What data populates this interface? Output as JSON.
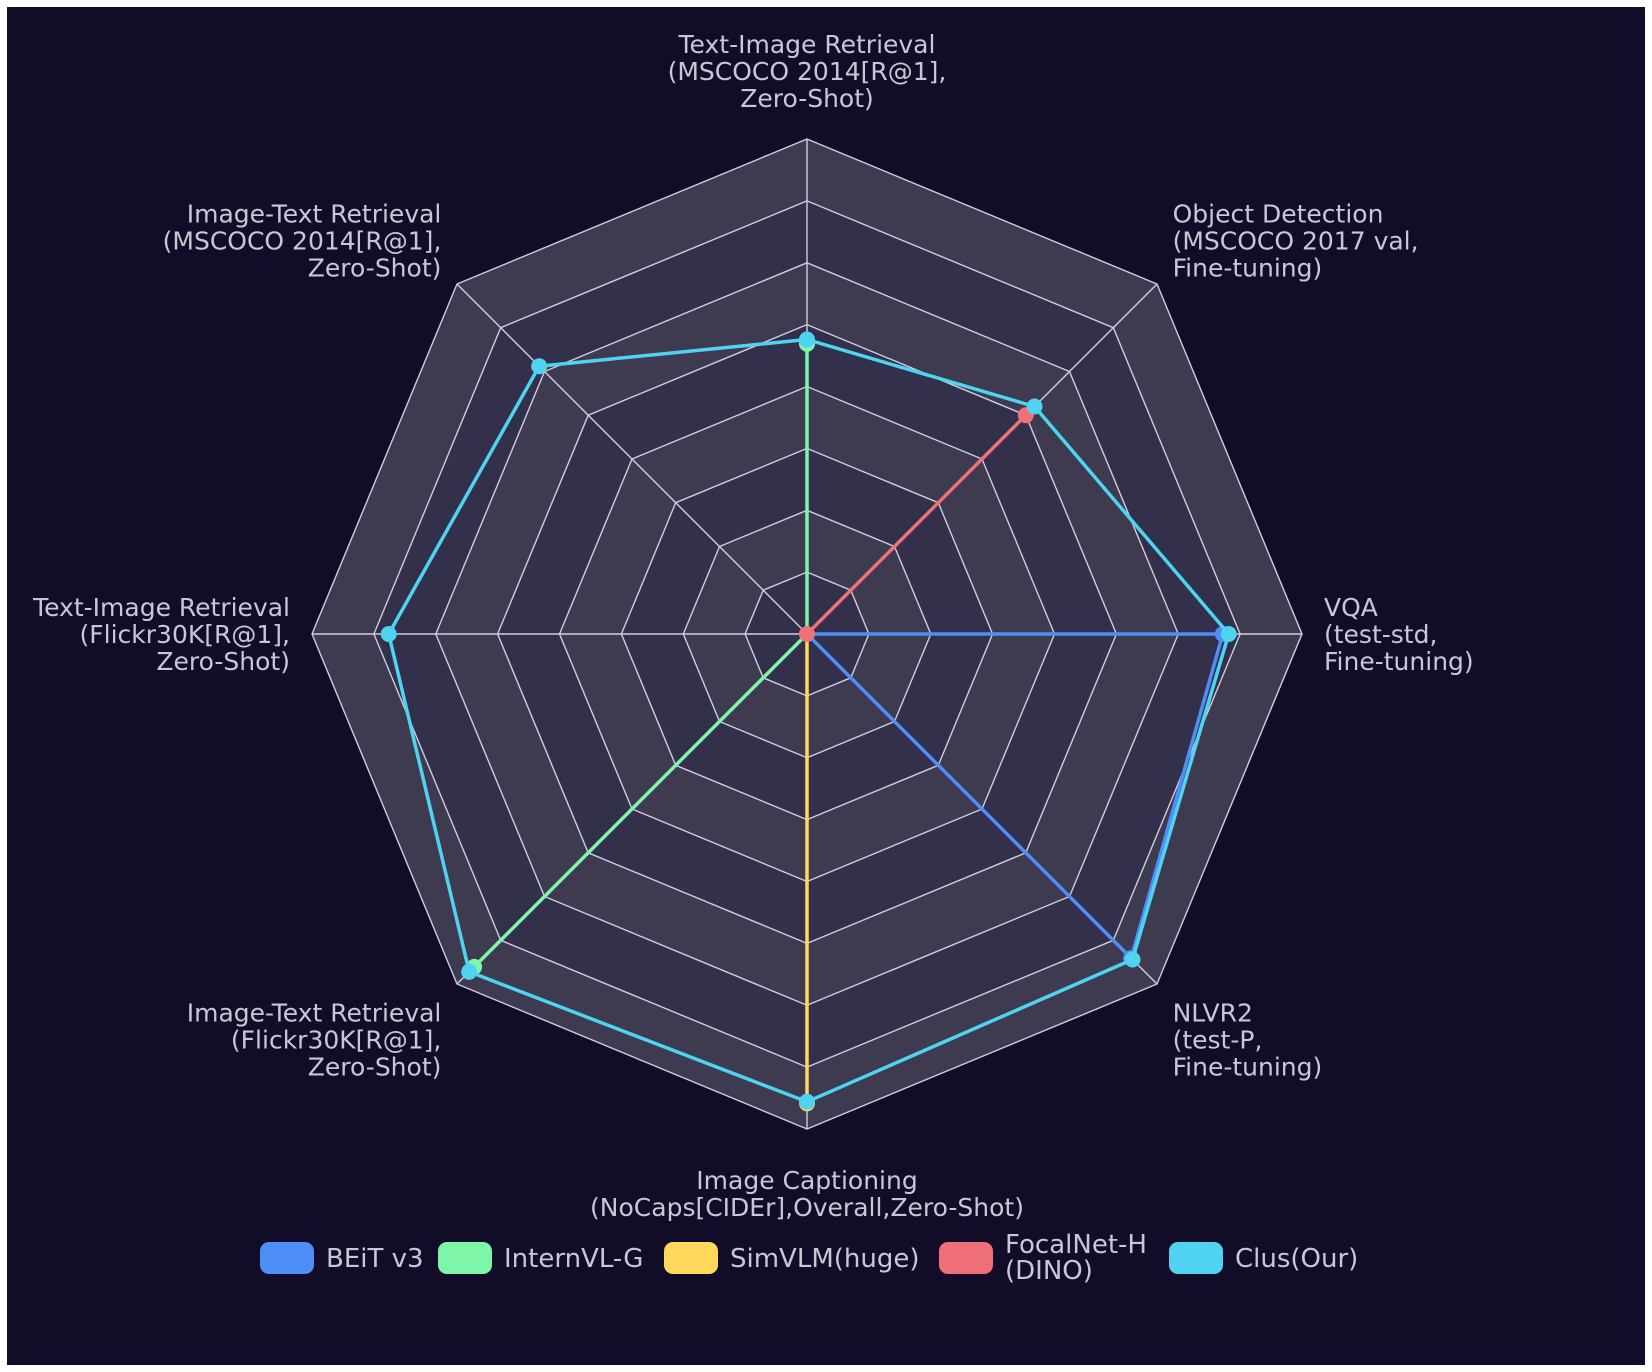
{
  "chart_data": {
    "type": "radar",
    "title": "",
    "max": 100,
    "rings": 8,
    "axes": [
      [
        "Text-Image Retrieval",
        "(MSCOCO 2014[R@1],",
        "Zero-Shot)"
      ],
      [
        "Object Detection",
        "(MSCOCO 2017 val,",
        "Fine-tuning)"
      ],
      [
        "VQA",
        "(test-std,",
        "Fine-tuning)"
      ],
      [
        "NLVR2",
        "(test-P,",
        "Fine-tuning)"
      ],
      [
        "Image Captioning",
        "(NoCaps[CIDEr],Overall,Zero-Shot)"
      ],
      [
        "Image-Text Retrieval",
        "(Flickr30K[R@1],",
        "Zero-Shot)"
      ],
      [
        "Text-Image Retrieval",
        "(Flickr30K[R@1],",
        "Zero-Shot)"
      ],
      [
        "Image-Text Retrieval",
        "(MSCOCO 2014[R@1],",
        "Zero-Shot)"
      ]
    ],
    "series": [
      {
        "name": "BEiT v3",
        "color": "#4f8ef7",
        "values": [
          0,
          0,
          84.0,
          92.6,
          0,
          0,
          0,
          0
        ]
      },
      {
        "name": "InternVL-G",
        "color": "#7ef5a8",
        "values": [
          58.6,
          0,
          0,
          0,
          0,
          95.1,
          0,
          0
        ]
      },
      {
        "name": "SimVLM(huge)",
        "color": "#ffd85c",
        "values": [
          0,
          0,
          0,
          0,
          94.8,
          0,
          0,
          0
        ]
      },
      {
        "name": "FocalNet-H\n(DINO)",
        "color": "#f0707a",
        "values": [
          0,
          62.5,
          0,
          0,
          0,
          0,
          0,
          0
        ]
      },
      {
        "name": "Clus(Our)",
        "color": "#4fd3f0",
        "values": [
          59.5,
          65.0,
          85.2,
          93.0,
          94.5,
          96.5,
          84.5,
          76.5
        ]
      }
    ],
    "legend_position": "bottom"
  }
}
